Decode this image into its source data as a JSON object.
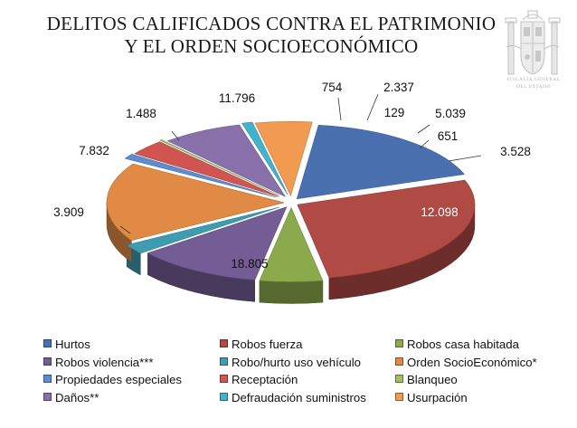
{
  "title_lines": [
    "DELITOS CALIFICADOS CONTRA EL PATRIMONIO",
    "Y EL ORDEN SOCIOECONÓMICO"
  ],
  "emblem_text_lines": [
    "FISCALÍA GENERAL",
    "DEL ESTADO"
  ],
  "chart_data": {
    "type": "pie",
    "title": "DELITOS CALIFICADOS CONTRA EL PATRIMONIO Y EL ORDEN SOCIOECONÓMICO",
    "style": "3d-exploded",
    "legend_position": "bottom",
    "slices": [
      {
        "name": "Hurtos",
        "value": 12098,
        "label": "12.098",
        "color": "#4a70b0"
      },
      {
        "name": "Robos fuerza",
        "value": 18805,
        "label": "18.805",
        "color": "#b04a45"
      },
      {
        "name": "Robos casa habitada",
        "value": 3909,
        "label": "3.909",
        "color": "#8aaa4c"
      },
      {
        "name": "Robos violencia***",
        "value": 7832,
        "label": "7.832",
        "color": "#735d94"
      },
      {
        "name": "Robo/hurto uso vehículo",
        "value": 1488,
        "label": "1.488",
        "color": "#3f9bb0"
      },
      {
        "name": "Orden SocioEconómico*",
        "value": 11796,
        "label": "11.796",
        "color": "#e08a45"
      },
      {
        "name": "Propiedades especiales",
        "value": 754,
        "label": "754",
        "color": "#5d8dd0"
      },
      {
        "name": "Receptación",
        "value": 2337,
        "label": "2.337",
        "color": "#d05550"
      },
      {
        "name": "Blanqueo",
        "value": 129,
        "label": "129",
        "color": "#9ec062"
      },
      {
        "name": "Daños**",
        "value": 5039,
        "label": "5.039",
        "color": "#8870ab"
      },
      {
        "name": "Defraudación suministros",
        "value": 651,
        "label": "651",
        "color": "#42b3cc"
      },
      {
        "name": "Usurpación",
        "value": 3528,
        "label": "3.528",
        "color": "#f09a52"
      }
    ]
  }
}
